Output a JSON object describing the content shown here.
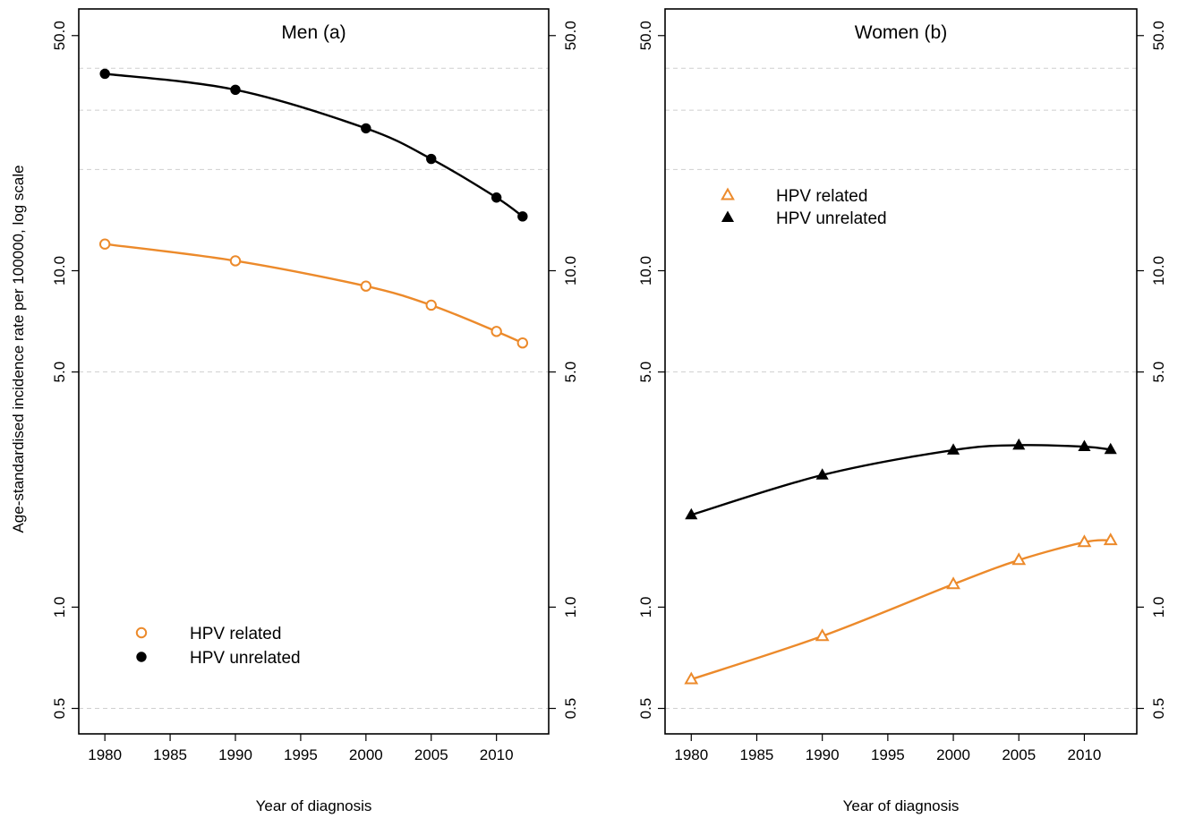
{
  "colors": {
    "hpv_related": "#ec8a2b",
    "hpv_unrelated": "#000000",
    "grid": "#cfcfcf"
  },
  "chart_data": [
    {
      "type": "line",
      "title": "Men (a)",
      "xlabel": "Year of diagnosis",
      "ylabel": "Age-standardised incidence rate per 100000, log scale",
      "yscale": "log",
      "ylim": [
        0.42,
        60
      ],
      "xlim": [
        1978,
        2014
      ],
      "xticks": [
        1980,
        1985,
        1990,
        1995,
        2000,
        2005,
        2010
      ],
      "xtick_labels": [
        "1980",
        "1985",
        "1990",
        "1995",
        "2000",
        "2005",
        "2010"
      ],
      "yticks": [
        0.5,
        1.0,
        5.0,
        10.0,
        50.0
      ],
      "ytick_labels": [
        "0.5",
        "1.0",
        "5.0",
        "10.0",
        "50.0"
      ],
      "grid_y": [
        0.5,
        5.0,
        20,
        30,
        40
      ],
      "legend": "bottom-left",
      "series": [
        {
          "name": "HPV related",
          "marker": "open-circle",
          "color_key": "hpv_related",
          "x": [
            1980,
            1990,
            2000,
            2005,
            2010,
            2012
          ],
          "y": [
            12.0,
            10.7,
            9.0,
            7.9,
            6.6,
            6.1
          ]
        },
        {
          "name": "HPV unrelated",
          "marker": "filled-circle",
          "color_key": "hpv_unrelated",
          "x": [
            1980,
            1990,
            2000,
            2005,
            2010,
            2012
          ],
          "y": [
            38.5,
            34.5,
            26.5,
            21.5,
            16.5,
            14.5
          ]
        }
      ]
    },
    {
      "type": "line",
      "title": "Women (b)",
      "xlabel": "Year of diagnosis",
      "ylabel": "",
      "yscale": "log",
      "ylim": [
        0.42,
        60
      ],
      "xlim": [
        1978,
        2014
      ],
      "xticks": [
        1980,
        1985,
        1990,
        1995,
        2000,
        2005,
        2010
      ],
      "xtick_labels": [
        "1980",
        "1985",
        "1990",
        "1995",
        "2000",
        "2005",
        "2010"
      ],
      "yticks": [
        0.5,
        1.0,
        5.0,
        10.0,
        50.0
      ],
      "ytick_labels": [
        "0.5",
        "1.0",
        "5.0",
        "10.0",
        "50.0"
      ],
      "grid_y": [
        0.5,
        5.0,
        20,
        30,
        40
      ],
      "legend": "upper-left",
      "series": [
        {
          "name": "HPV related",
          "marker": "open-triangle",
          "color_key": "hpv_related",
          "x": [
            1980,
            1990,
            2000,
            2005,
            2010,
            2012
          ],
          "y": [
            0.61,
            0.82,
            1.17,
            1.38,
            1.56,
            1.58
          ]
        },
        {
          "name": "HPV unrelated",
          "marker": "filled-triangle",
          "color_key": "hpv_unrelated",
          "x": [
            1980,
            1990,
            2000,
            2005,
            2010,
            2012
          ],
          "y": [
            1.88,
            2.47,
            2.93,
            3.03,
            3.0,
            2.94
          ]
        }
      ]
    }
  ]
}
